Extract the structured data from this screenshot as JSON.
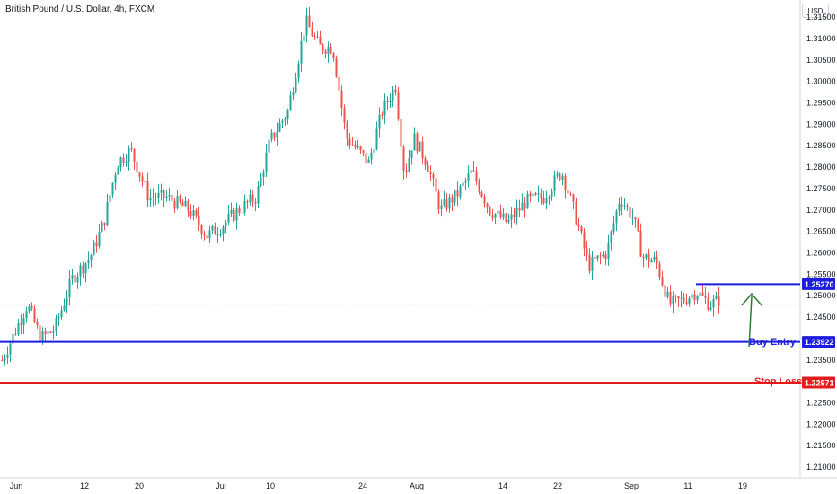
{
  "title": "British Pound / U.S. Dollar, 4h, FXCM",
  "currency_button": "USD",
  "colors": {
    "bull": "#26a69a",
    "bear": "#ef5350",
    "blue": "#1d1de0",
    "red": "#e31b1b",
    "arrow": "#2e7d32",
    "axis": "#d1d4dc"
  },
  "chart_data": {
    "type": "candlestick",
    "symbol": "GBPUSD",
    "timeframe": "4h",
    "ylim": [
      1.2075,
      1.319
    ],
    "y_ticks": [
      "1.31500",
      "1.31000",
      "1.30500",
      "1.30000",
      "1.29500",
      "1.29000",
      "1.28500",
      "1.28000",
      "1.27500",
      "1.27000",
      "1.26500",
      "1.26000",
      "1.25500",
      "1.25000",
      "1.24500",
      "1.23500",
      "1.22500",
      "1.22000",
      "1.21500",
      "1.21000"
    ],
    "x_ticks": [
      "Jun",
      "12",
      "20",
      "Jul",
      "10",
      "24",
      "Aug",
      "14",
      "22",
      "Sep",
      "11",
      "19"
    ],
    "anchors": [
      [
        0,
        1.234
      ],
      [
        30,
        1.248
      ],
      [
        45,
        1.24
      ],
      [
        60,
        1.242
      ],
      [
        80,
        1.254
      ],
      [
        100,
        1.259
      ],
      [
        115,
        1.267
      ],
      [
        130,
        1.281
      ],
      [
        145,
        1.284
      ],
      [
        165,
        1.273
      ],
      [
        185,
        1.273
      ],
      [
        210,
        1.27
      ],
      [
        230,
        1.264
      ],
      [
        245,
        1.266
      ],
      [
        265,
        1.27
      ],
      [
        285,
        1.273
      ],
      [
        300,
        1.286
      ],
      [
        320,
        1.293
      ],
      [
        340,
        1.314
      ],
      [
        355,
        1.308
      ],
      [
        370,
        1.308
      ],
      [
        385,
        1.287
      ],
      [
        410,
        1.281
      ],
      [
        425,
        1.293
      ],
      [
        440,
        1.299
      ],
      [
        450,
        1.278
      ],
      [
        460,
        1.287
      ],
      [
        475,
        1.281
      ],
      [
        490,
        1.27
      ],
      [
        510,
        1.274
      ],
      [
        525,
        1.279
      ],
      [
        545,
        1.27
      ],
      [
        565,
        1.267
      ],
      [
        585,
        1.272
      ],
      [
        605,
        1.273
      ],
      [
        625,
        1.279
      ],
      [
        640,
        1.269
      ],
      [
        655,
        1.257
      ],
      [
        675,
        1.26
      ],
      [
        690,
        1.273
      ],
      [
        705,
        1.268
      ],
      [
        715,
        1.259
      ],
      [
        730,
        1.258
      ],
      [
        745,
        1.248
      ],
      [
        760,
        1.249
      ],
      [
        775,
        1.251
      ],
      [
        790,
        1.248
      ],
      [
        800,
        1.249
      ]
    ],
    "levels": [
      {
        "label": "1.25270",
        "value": 1.2527,
        "color": "blue",
        "x_start": 775
      },
      {
        "label": "1.23922",
        "value": 1.23922,
        "color": "blue",
        "x_start": 0
      },
      {
        "label": "1.22971",
        "value": 1.22971,
        "color": "red",
        "x_start": 0
      }
    ],
    "current_price": 1.248,
    "annotations": [
      {
        "text": "Buy Entry",
        "color": "blue"
      },
      {
        "text": "Stop Loss",
        "color": "red"
      }
    ]
  }
}
